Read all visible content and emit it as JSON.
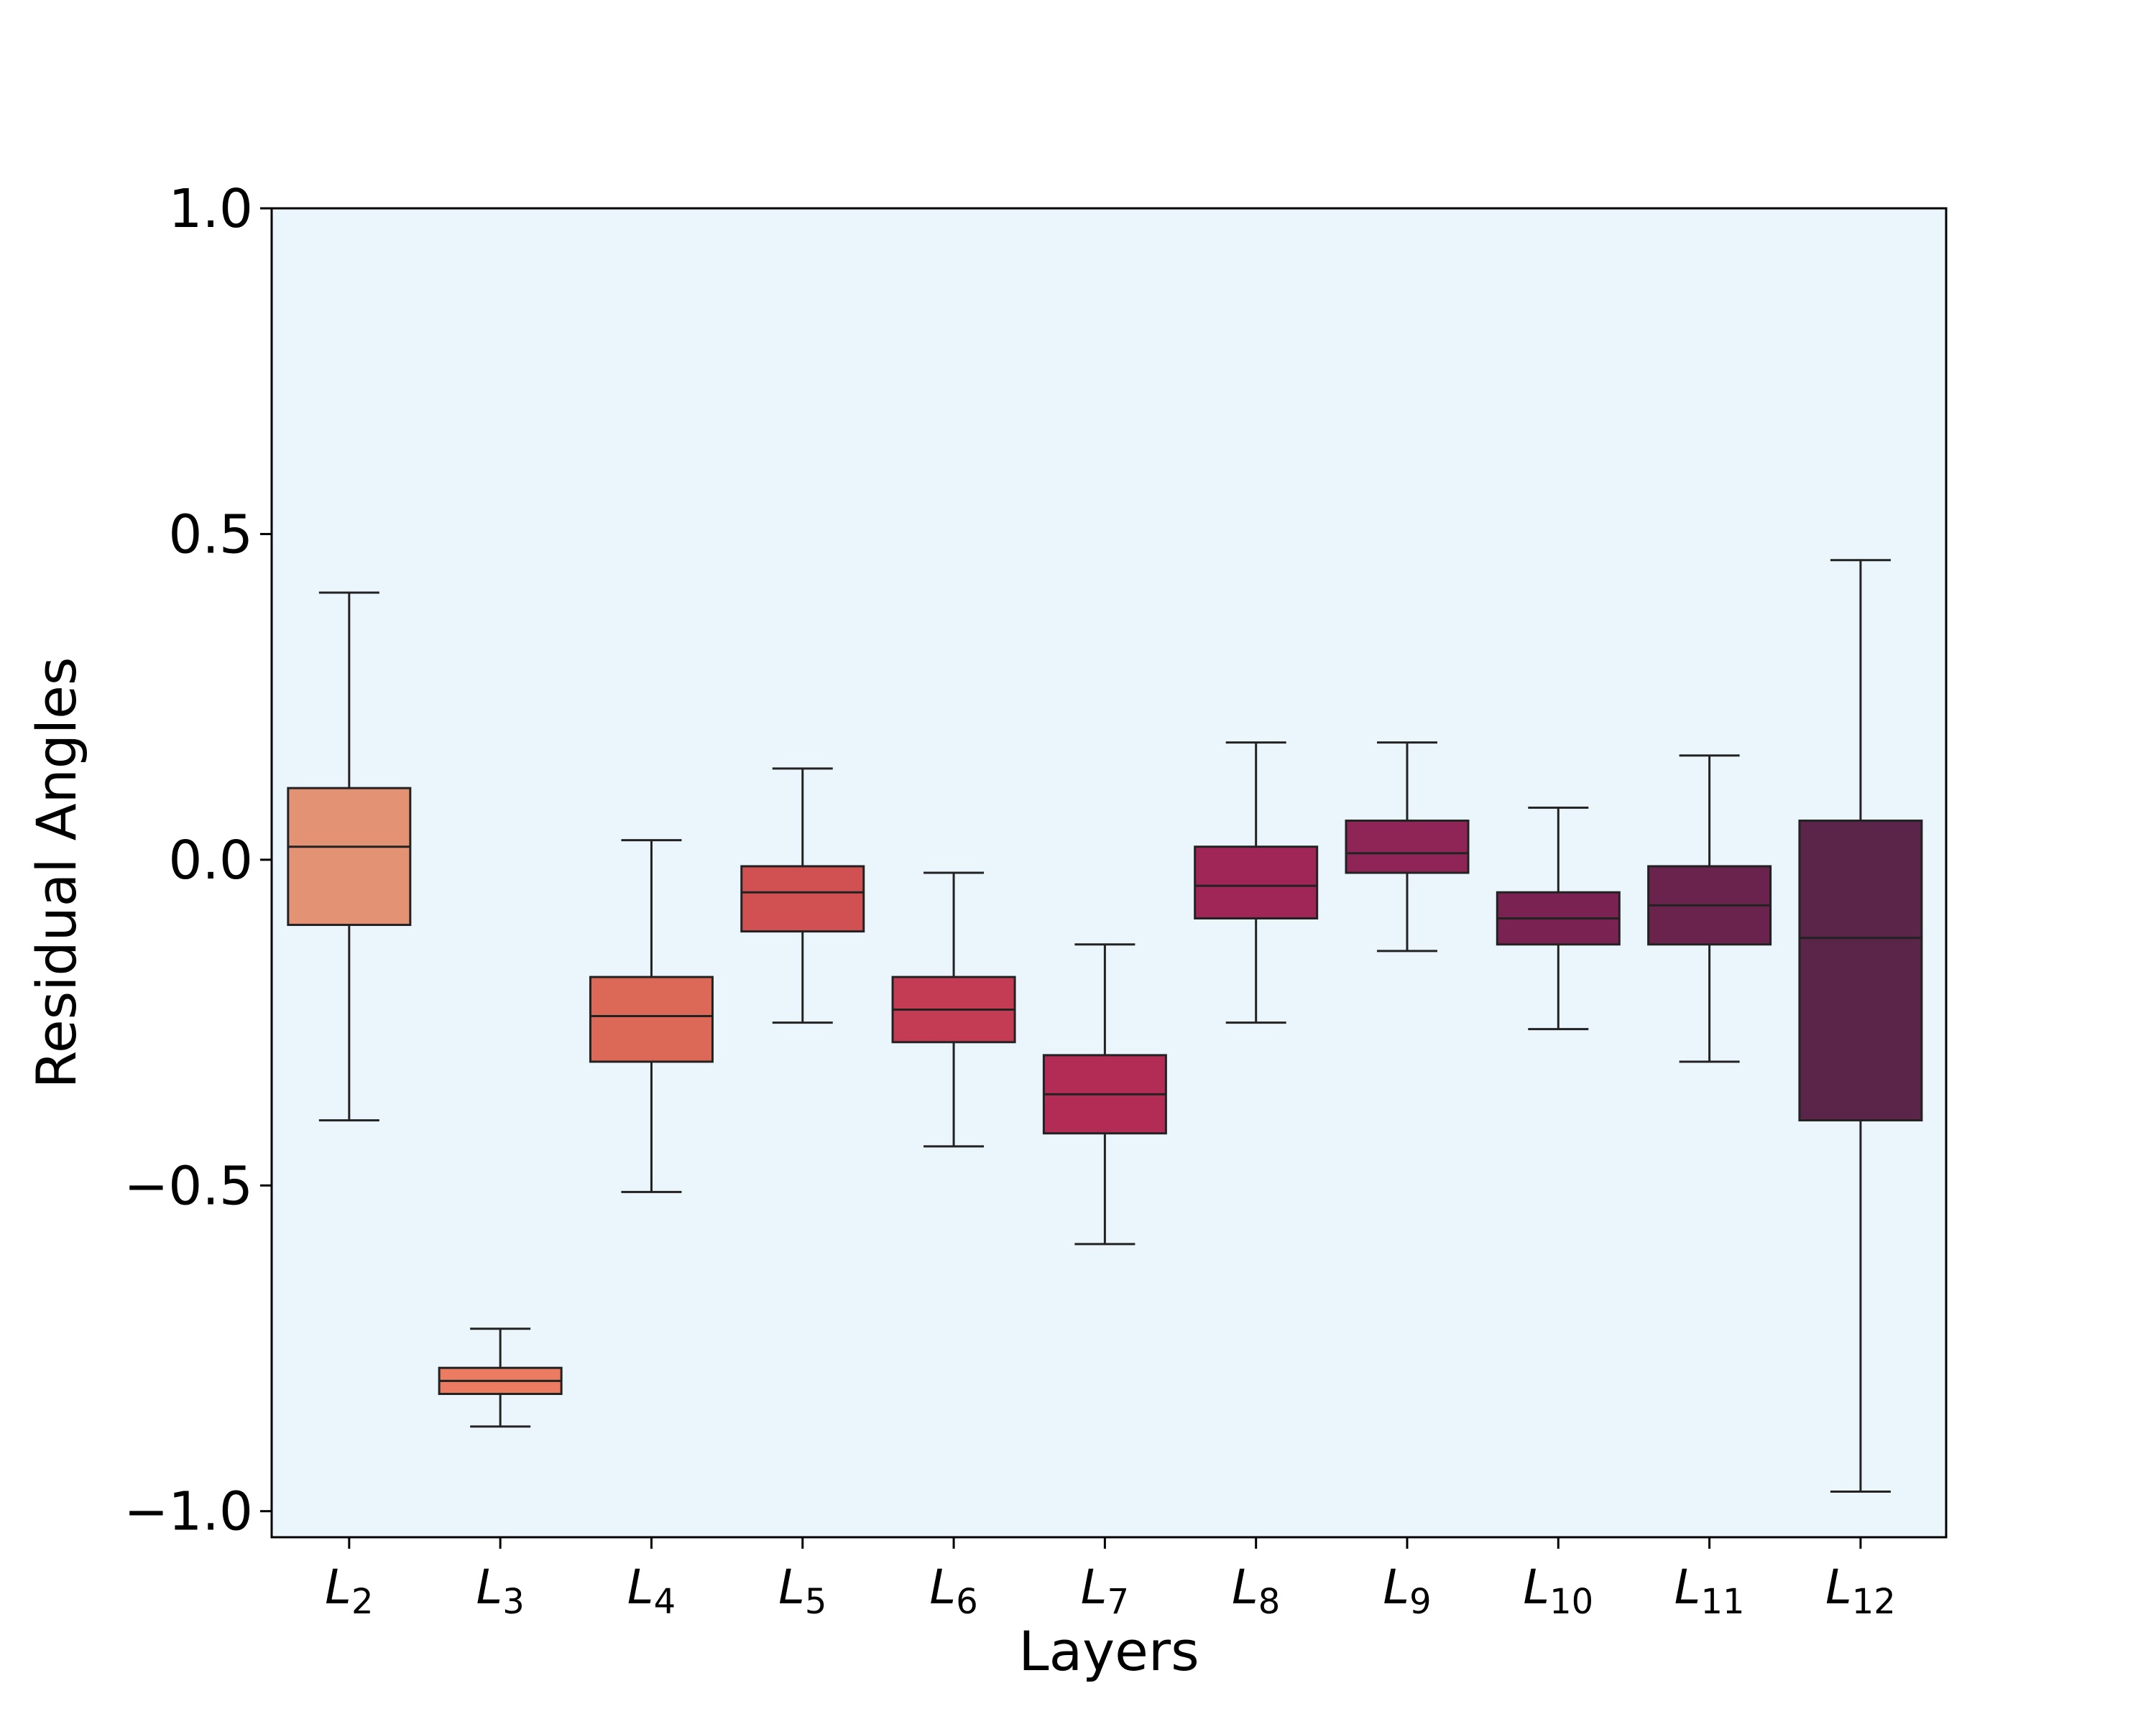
{
  "chart_data": {
    "type": "box",
    "title": "",
    "xlabel": "Layers",
    "ylabel": "Residual Angles",
    "ylim": [
      -1.04,
      1.0
    ],
    "yticks": [
      1.0,
      0.5,
      0.0,
      -0.5,
      -1.0
    ],
    "ytick_labels": [
      "1.0",
      "0.5",
      "0.0",
      "−0.5",
      "−1.0"
    ],
    "grid": false,
    "background_color": "#ebf6fc",
    "categories": [
      {
        "prefix": "L",
        "sub": "2"
      },
      {
        "prefix": "L",
        "sub": "3"
      },
      {
        "prefix": "L",
        "sub": "4"
      },
      {
        "prefix": "L",
        "sub": "5"
      },
      {
        "prefix": "L",
        "sub": "6"
      },
      {
        "prefix": "L",
        "sub": "7"
      },
      {
        "prefix": "L",
        "sub": "8"
      },
      {
        "prefix": "L",
        "sub": "9"
      },
      {
        "prefix": "L",
        "sub": "10"
      },
      {
        "prefix": "L",
        "sub": "11"
      },
      {
        "prefix": "L",
        "sub": "12"
      }
    ],
    "boxes": [
      {
        "whisker_low": -0.4,
        "q1": -0.1,
        "median": 0.02,
        "q3": 0.11,
        "whisker_high": 0.41,
        "color": "#e39374"
      },
      {
        "whisker_low": -0.87,
        "q1": -0.82,
        "median": -0.8,
        "q3": -0.78,
        "whisker_high": -0.72,
        "color": "#ec7c61"
      },
      {
        "whisker_low": -0.51,
        "q1": -0.31,
        "median": -0.24,
        "q3": -0.18,
        "whisker_high": 0.03,
        "color": "#dc6957"
      },
      {
        "whisker_low": -0.25,
        "q1": -0.11,
        "median": -0.05,
        "q3": -0.01,
        "whisker_high": 0.14,
        "color": "#d15052"
      },
      {
        "whisker_low": -0.44,
        "q1": -0.28,
        "median": -0.23,
        "q3": -0.18,
        "whisker_high": -0.02,
        "color": "#c43c53"
      },
      {
        "whisker_low": -0.59,
        "q1": -0.42,
        "median": -0.36,
        "q3": -0.3,
        "whisker_high": -0.13,
        "color": "#b22c56"
      },
      {
        "whisker_low": -0.25,
        "q1": -0.09,
        "median": -0.04,
        "q3": 0.02,
        "whisker_high": 0.18,
        "color": "#a12658"
      },
      {
        "whisker_low": -0.14,
        "q1": -0.02,
        "median": 0.01,
        "q3": 0.06,
        "whisker_high": 0.18,
        "color": "#8e2556"
      },
      {
        "whisker_low": -0.26,
        "q1": -0.13,
        "median": -0.09,
        "q3": -0.05,
        "whisker_high": 0.08,
        "color": "#7a2353"
      },
      {
        "whisker_low": -0.31,
        "q1": -0.13,
        "median": -0.07,
        "q3": -0.01,
        "whisker_high": 0.16,
        "color": "#6a234d"
      },
      {
        "whisker_low": -0.97,
        "q1": -0.4,
        "median": -0.12,
        "q3": 0.06,
        "whisker_high": 0.46,
        "color": "#5a2548"
      }
    ]
  }
}
